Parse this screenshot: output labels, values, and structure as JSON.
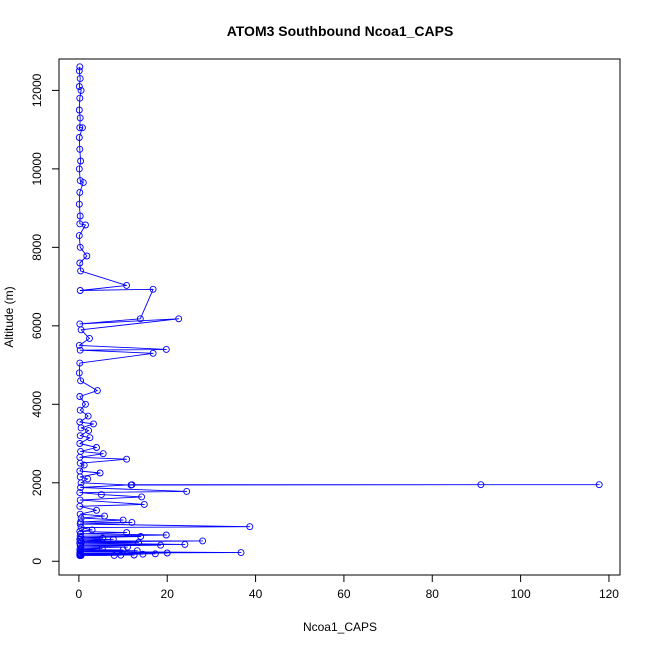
{
  "chart_data": {
    "type": "line",
    "title": "ATOM3 Southbound Ncoa1_CAPS",
    "xlabel": "Ncoa1_CAPS",
    "ylabel": "Altitude (m)",
    "xlim": [
      -4.5,
      122.5
    ],
    "ylim": [
      -350,
      12800
    ],
    "xticks": [
      0,
      20,
      40,
      60,
      80,
      100,
      120
    ],
    "yticks": [
      0,
      2000,
      4000,
      6000,
      8000,
      10000,
      12000
    ],
    "xtick_labels": [
      "0",
      "20",
      "40",
      "60",
      "80",
      "100",
      "120"
    ],
    "ytick_labels": [
      "0",
      "2000",
      "4000",
      "6000",
      "8000",
      "10000",
      "12000"
    ],
    "grid": false,
    "series": [
      {
        "color": "#0000ff",
        "marker": "open-circle",
        "points": [
          [
            0.2,
            12600
          ],
          [
            0.1,
            12500
          ],
          [
            0.3,
            12300
          ],
          [
            0.1,
            12100
          ],
          [
            0.5,
            12000
          ],
          [
            0.2,
            11800
          ],
          [
            0.1,
            11500
          ],
          [
            0.3,
            11300
          ],
          [
            0.2,
            11050
          ],
          [
            0.8,
            11050
          ],
          [
            0.1,
            10800
          ],
          [
            0.2,
            10500
          ],
          [
            0.4,
            10200
          ],
          [
            0.1,
            10000
          ],
          [
            0.3,
            9700
          ],
          [
            1.0,
            9650
          ],
          [
            0.2,
            9400
          ],
          [
            0.1,
            9100
          ],
          [
            0.3,
            8800
          ],
          [
            0.2,
            8600
          ],
          [
            1.5,
            8570
          ],
          [
            0.1,
            8300
          ],
          [
            0.3,
            8000
          ],
          [
            1.8,
            7780
          ],
          [
            0.2,
            7600
          ],
          [
            0.4,
            7400
          ],
          [
            10.8,
            7030
          ],
          [
            0.3,
            6900
          ],
          [
            16.8,
            6930
          ],
          [
            13.9,
            6180
          ],
          [
            0.2,
            6050
          ],
          [
            22.6,
            6180
          ],
          [
            0.5,
            5900
          ],
          [
            2.4,
            5680
          ],
          [
            0.1,
            5500
          ],
          [
            19.8,
            5400
          ],
          [
            0.3,
            5380
          ],
          [
            16.8,
            5300
          ],
          [
            0.2,
            5050
          ],
          [
            0.1,
            4800
          ],
          [
            0.4,
            4600
          ],
          [
            4.2,
            4350
          ],
          [
            0.2,
            4200
          ],
          [
            1.5,
            4000
          ],
          [
            0.3,
            3850
          ],
          [
            2.1,
            3700
          ],
          [
            0.2,
            3550
          ],
          [
            3.3,
            3500
          ],
          [
            0.5,
            3400
          ],
          [
            2.2,
            3330
          ],
          [
            0.3,
            3200
          ],
          [
            2.5,
            3150
          ],
          [
            0.2,
            3000
          ],
          [
            4.0,
            2900
          ],
          [
            0.4,
            2800
          ],
          [
            5.5,
            2740
          ],
          [
            0.2,
            2650
          ],
          [
            10.8,
            2600
          ],
          [
            0.3,
            2500
          ],
          [
            1.2,
            2450
          ],
          [
            0.2,
            2300
          ],
          [
            4.8,
            2250
          ],
          [
            0.3,
            2150
          ],
          [
            2.0,
            2100
          ],
          [
            0.5,
            2000
          ],
          [
            11.8,
            1940
          ],
          [
            91.0,
            1950
          ],
          [
            117.8,
            1950
          ],
          [
            12.0,
            1950
          ],
          [
            0.4,
            1880
          ],
          [
            24.4,
            1780
          ],
          [
            0.2,
            1750
          ],
          [
            5.1,
            1700
          ],
          [
            14.2,
            1640
          ],
          [
            0.3,
            1560
          ],
          [
            14.8,
            1450
          ],
          [
            0.2,
            1400
          ],
          [
            4.0,
            1300
          ],
          [
            0.3,
            1200
          ],
          [
            5.8,
            1150
          ],
          [
            0.5,
            1100
          ],
          [
            10.0,
            1050
          ],
          [
            0.4,
            1000
          ],
          [
            12.0,
            990
          ],
          [
            0.3,
            950
          ],
          [
            38.7,
            880
          ],
          [
            0.5,
            860
          ],
          [
            3.0,
            800
          ],
          [
            0.2,
            760
          ],
          [
            10.8,
            730
          ],
          [
            0.4,
            700
          ],
          [
            19.8,
            670
          ],
          [
            0.3,
            640
          ],
          [
            14.0,
            630
          ],
          [
            0.5,
            600
          ],
          [
            5.4,
            590
          ],
          [
            0.2,
            560
          ],
          [
            7.8,
            560
          ],
          [
            0.3,
            520
          ],
          [
            28.0,
            520
          ],
          [
            0.6,
            490
          ],
          [
            13.5,
            480
          ],
          [
            0.2,
            460
          ],
          [
            24.0,
            430
          ],
          [
            0.4,
            420
          ],
          [
            18.5,
            410
          ],
          [
            0.3,
            390
          ],
          [
            11.0,
            360
          ],
          [
            0.5,
            340
          ],
          [
            5.3,
            330
          ],
          [
            0.2,
            300
          ],
          [
            10.0,
            290
          ],
          [
            0.4,
            270
          ],
          [
            13.2,
            270
          ],
          [
            0.3,
            250
          ],
          [
            36.7,
            220
          ],
          [
            0.2,
            210
          ],
          [
            20.0,
            210
          ],
          [
            0.4,
            200
          ],
          [
            17.3,
            190
          ],
          [
            0.3,
            180
          ],
          [
            14.5,
            180
          ],
          [
            0.2,
            170
          ],
          [
            12.5,
            160
          ],
          [
            0.4,
            160
          ],
          [
            9.5,
            155
          ],
          [
            0.3,
            150
          ],
          [
            8.0,
            150
          ],
          [
            0.2,
            148
          ],
          [
            0.5,
            145
          ]
        ]
      }
    ]
  }
}
